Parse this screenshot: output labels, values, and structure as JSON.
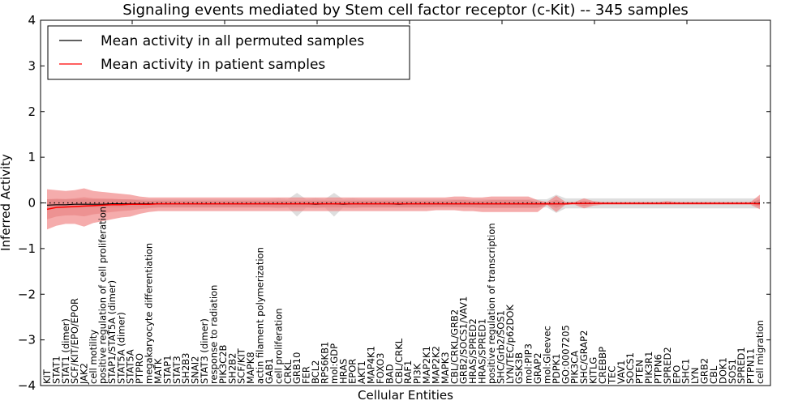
{
  "chart_data": {
    "type": "line",
    "title": "Signaling events mediated by Stem cell factor receptor (c-Kit) -- 345 samples",
    "xlabel": "Cellular Entities",
    "ylabel": "Inferred Activity",
    "ylim": [
      -4,
      4
    ],
    "yticks": [
      4,
      3,
      2,
      1,
      0,
      -1,
      -2,
      -3,
      -4
    ],
    "ytick_labels": [
      "4",
      "3",
      "2",
      "1",
      "0",
      "−1",
      "−2",
      "−3",
      "−4"
    ],
    "grid": false,
    "reference_line": {
      "y": 0,
      "style": "dotted"
    },
    "legend": {
      "placement": "top-left",
      "entries": [
        {
          "label": "Mean activity in all permuted samples",
          "color": "#000000"
        },
        {
          "label": "Mean activity in patient samples",
          "color": "#ff0000"
        }
      ]
    },
    "colors": {
      "permuted_line": "#000000",
      "patient_line": "#ff0000",
      "patient_band": "#f08080",
      "permuted_band": "#c8c8c8"
    },
    "categories": [
      "KIT",
      "STAT1",
      "STAT1 (dimer)",
      "SCF/KIT/EPO/EPOR",
      "JAK2",
      "cell motility",
      "positive regulation of cell proliferation",
      "STAP1/STAT5A (dimer)",
      "STAT5A (dimer)",
      "STAT5A",
      "PTPRO",
      "megakaryocyte differentiation",
      "MATK",
      "STAP1",
      "STAT3",
      "SH2B3",
      "SNAI2",
      "STAT3 (dimer)",
      "response to radiation",
      "PIK3C2B",
      "SH2B2",
      "SCF/KIT",
      "MAPK8",
      "actin filament polymerization",
      "GAB1",
      "cell proliferation",
      "CRKL",
      "GRB10",
      "FER",
      "BCL2",
      "RPS6KB1",
      "mol:GDP",
      "HRAS",
      "EPOR",
      "AKT1",
      "MAP4K1",
      "FOXO3",
      "BAD",
      "CBL/CRKL",
      "RAF1",
      "PI3K",
      "MAP2K1",
      "MAP2K2",
      "MAPK3",
      "CBL/CRKL/GRB2",
      "GRB2/SOCS1/VAV1",
      "HRAS/SPRED2",
      "HRAS/SPRED1",
      "positive regulation of transcription",
      "SHC/Grb2/SOS1",
      "LYN/TEC/p62DOK",
      "GSK3B",
      "mol:PIP3",
      "GRAP2",
      "mol:Gleevec",
      "PDPK1",
      "GO:0007205",
      "PIK3CA",
      "SHC/GRAP2",
      "KITLG",
      "CREBBP",
      "TEC",
      "VAV1",
      "SOCS1",
      "PTEN",
      "PIK3R1",
      "PTPN6",
      "SPRED2",
      "EPO",
      "SHC1",
      "LYN",
      "GRB2",
      "CBL",
      "DOK1",
      "SOS1",
      "SPRED1",
      "PTPN11",
      "cell migration"
    ],
    "series": [
      {
        "name": "Mean activity in all permuted samples",
        "values": [
          -0.05,
          -0.04,
          -0.04,
          -0.03,
          -0.03,
          -0.03,
          -0.03,
          -0.02,
          -0.02,
          -0.02,
          -0.02,
          -0.02,
          -0.02,
          -0.02,
          -0.02,
          -0.02,
          -0.02,
          -0.02,
          -0.02,
          -0.02,
          -0.02,
          -0.02,
          -0.02,
          -0.02,
          -0.02,
          -0.02,
          -0.02,
          -0.02,
          -0.02,
          -0.03,
          -0.02,
          -0.02,
          -0.03,
          -0.02,
          -0.02,
          -0.02,
          -0.02,
          -0.02,
          -0.03,
          -0.02,
          -0.02,
          -0.02,
          -0.02,
          -0.02,
          -0.02,
          -0.02,
          -0.02,
          -0.02,
          -0.02,
          -0.02,
          -0.02,
          -0.02,
          -0.02,
          -0.02,
          -0.02,
          -0.02,
          -0.02,
          -0.01,
          -0.01,
          -0.01,
          -0.01,
          -0.01,
          -0.01,
          -0.01,
          -0.01,
          -0.01,
          -0.01,
          -0.01,
          -0.01,
          -0.01,
          -0.01,
          -0.01,
          -0.01,
          -0.01,
          -0.01,
          -0.01,
          -0.01,
          -0.01
        ],
        "band_low": [
          -0.1,
          -0.1,
          -0.1,
          -0.1,
          -0.1,
          -0.1,
          -0.1,
          -0.1,
          -0.1,
          -0.1,
          -0.1,
          -0.1,
          -0.1,
          -0.1,
          -0.1,
          -0.1,
          -0.1,
          -0.1,
          -0.1,
          -0.1,
          -0.1,
          -0.1,
          -0.1,
          -0.1,
          -0.1,
          -0.12,
          -0.1,
          -0.3,
          -0.1,
          -0.12,
          -0.1,
          -0.3,
          -0.1,
          -0.12,
          -0.1,
          -0.1,
          -0.1,
          -0.1,
          -0.1,
          -0.1,
          -0.1,
          -0.1,
          -0.1,
          -0.1,
          -0.1,
          -0.1,
          -0.1,
          -0.1,
          -0.1,
          -0.1,
          -0.1,
          -0.1,
          -0.1,
          -0.1,
          -0.1,
          -0.22,
          -0.12,
          -0.12,
          -0.12,
          -0.12,
          -0.12,
          -0.12,
          -0.12,
          -0.12,
          -0.12,
          -0.12,
          -0.12,
          -0.12,
          -0.12,
          -0.12,
          -0.12,
          -0.12,
          -0.12,
          -0.12,
          -0.12,
          -0.12,
          -0.12,
          -0.12
        ],
        "band_high": [
          0.08,
          0.08,
          0.08,
          0.08,
          0.08,
          0.08,
          0.08,
          0.08,
          0.08,
          0.08,
          0.08,
          0.08,
          0.08,
          0.08,
          0.08,
          0.08,
          0.08,
          0.08,
          0.08,
          0.08,
          0.08,
          0.08,
          0.08,
          0.08,
          0.08,
          0.1,
          0.08,
          0.22,
          0.08,
          0.1,
          0.08,
          0.22,
          0.08,
          0.1,
          0.08,
          0.08,
          0.08,
          0.08,
          0.08,
          0.08,
          0.08,
          0.08,
          0.08,
          0.08,
          0.08,
          0.08,
          0.08,
          0.08,
          0.08,
          0.08,
          0.08,
          0.08,
          0.08,
          0.08,
          0.08,
          0.18,
          0.1,
          0.1,
          0.1,
          0.1,
          0.1,
          0.1,
          0.1,
          0.1,
          0.1,
          0.1,
          0.1,
          0.1,
          0.1,
          0.1,
          0.1,
          0.1,
          0.1,
          0.1,
          0.1,
          0.1,
          0.1,
          0.1
        ]
      },
      {
        "name": "Mean activity in patient samples",
        "values": [
          -0.14,
          -0.1,
          -0.09,
          -0.08,
          -0.07,
          -0.06,
          -0.05,
          -0.04,
          -0.04,
          -0.03,
          -0.03,
          -0.03,
          -0.02,
          -0.02,
          -0.02,
          -0.02,
          -0.02,
          -0.02,
          -0.02,
          -0.02,
          -0.02,
          -0.02,
          -0.02,
          -0.02,
          -0.02,
          -0.02,
          -0.02,
          -0.02,
          -0.02,
          -0.02,
          -0.02,
          -0.02,
          -0.02,
          -0.02,
          -0.02,
          -0.02,
          -0.02,
          -0.02,
          -0.02,
          -0.02,
          -0.02,
          -0.02,
          -0.02,
          -0.02,
          -0.02,
          -0.02,
          -0.02,
          -0.02,
          -0.02,
          -0.02,
          -0.02,
          -0.02,
          -0.02,
          -0.02,
          -0.02,
          -0.02,
          -0.02,
          -0.01,
          -0.01,
          -0.01,
          -0.01,
          -0.01,
          -0.01,
          -0.01,
          -0.01,
          -0.01,
          -0.01,
          -0.01,
          -0.01,
          -0.01,
          -0.01,
          -0.01,
          -0.01,
          -0.01,
          -0.01,
          -0.01,
          -0.01,
          -0.02
        ],
        "band_low": [
          -0.58,
          -0.5,
          -0.46,
          -0.46,
          -0.52,
          -0.44,
          -0.4,
          -0.36,
          -0.32,
          -0.3,
          -0.24,
          -0.2,
          -0.18,
          -0.18,
          -0.18,
          -0.18,
          -0.18,
          -0.18,
          -0.18,
          -0.18,
          -0.18,
          -0.18,
          -0.18,
          -0.18,
          -0.18,
          -0.18,
          -0.18,
          -0.18,
          -0.18,
          -0.18,
          -0.18,
          -0.18,
          -0.18,
          -0.18,
          -0.18,
          -0.18,
          -0.18,
          -0.18,
          -0.18,
          -0.18,
          -0.18,
          -0.18,
          -0.16,
          -0.16,
          -0.16,
          -0.18,
          -0.18,
          -0.2,
          -0.2,
          -0.2,
          -0.2,
          -0.2,
          -0.2,
          -0.2,
          -0.04,
          -0.2,
          -0.04,
          -0.04,
          -0.12,
          -0.06,
          -0.04,
          -0.04,
          -0.04,
          -0.04,
          -0.04,
          -0.04,
          -0.04,
          -0.04,
          -0.04,
          -0.04,
          -0.04,
          -0.04,
          -0.04,
          -0.04,
          -0.04,
          -0.04,
          -0.04,
          -0.14
        ],
        "band_high": [
          0.3,
          0.28,
          0.26,
          0.28,
          0.32,
          0.26,
          0.24,
          0.22,
          0.2,
          0.18,
          0.14,
          0.12,
          0.12,
          0.12,
          0.12,
          0.12,
          0.12,
          0.12,
          0.12,
          0.12,
          0.12,
          0.12,
          0.12,
          0.12,
          0.12,
          0.12,
          0.12,
          0.12,
          0.12,
          0.12,
          0.12,
          0.12,
          0.12,
          0.12,
          0.12,
          0.12,
          0.12,
          0.12,
          0.12,
          0.12,
          0.12,
          0.12,
          0.12,
          0.12,
          0.14,
          0.14,
          0.12,
          0.12,
          0.14,
          0.14,
          0.14,
          0.14,
          0.14,
          0.06,
          0.02,
          0.16,
          0.02,
          0.02,
          0.1,
          0.04,
          0.02,
          0.02,
          0.02,
          0.02,
          0.02,
          0.02,
          0.02,
          0.04,
          0.02,
          0.02,
          0.02,
          0.02,
          0.02,
          0.02,
          0.02,
          0.02,
          0.02,
          0.18
        ]
      }
    ]
  }
}
